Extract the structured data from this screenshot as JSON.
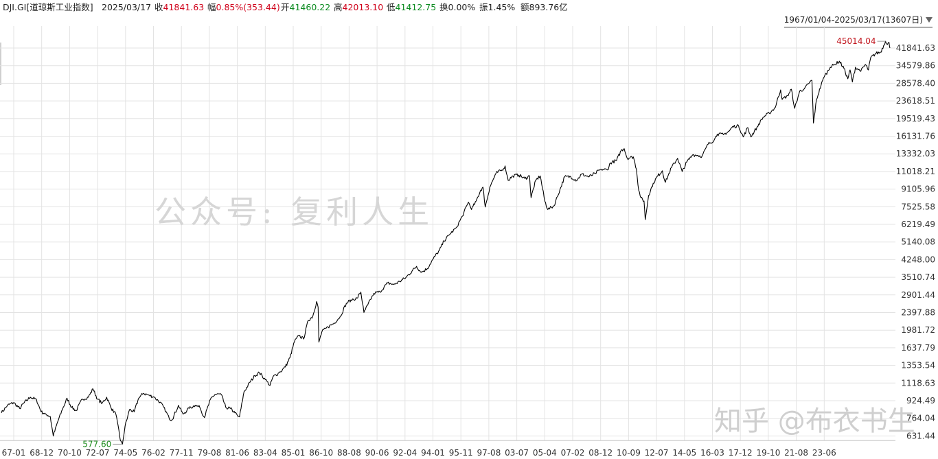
{
  "header": {
    "code": "DJI.GI[道琼斯工业指数]",
    "date": "2025/03/17",
    "close_label": "收",
    "close_value": "41841.63",
    "change_label": "幅",
    "change_value": "0.85%(353.44)",
    "open_label": "开",
    "open_value": "41460.22",
    "high_label": "高",
    "high_value": "42013.10",
    "low_label": "低",
    "low_value": "41412.75",
    "turnover_label": "换",
    "turnover_value": "0.00%",
    "amplitude_label": "振",
    "amplitude_value": "1.45%",
    "amount_label": "额",
    "amount_value": "893.76亿"
  },
  "range_selector": {
    "label": "1967/01/04-2025/03/17(13607日)"
  },
  "watermarks": {
    "center": "公众号: 复利人生",
    "bottom_right": "知乎 @布衣书生"
  },
  "colors": {
    "line": "#000000",
    "grid": "#e3e3e3",
    "high_mark": "#c0141c",
    "low_mark": "#1a8a1a"
  },
  "chart_data": {
    "type": "line",
    "scale": "log",
    "grid": true,
    "y_ticks": [
      "41841.63",
      "34579.86",
      "28578.40",
      "23618.51",
      "19519.43",
      "16131.76",
      "13332.03",
      "11018.21",
      "9105.96",
      "7525.58",
      "6219.49",
      "5140.08",
      "4248.00",
      "3510.74",
      "2901.44",
      "2397.88",
      "1981.72",
      "1637.79",
      "1353.54",
      "1118.63",
      "924.49",
      "764.04",
      "631.44"
    ],
    "x_ticks": [
      "67-01",
      "68-12",
      "70-10",
      "72-07",
      "74-05",
      "76-02",
      "77-11",
      "79-08",
      "81-06",
      "83-04",
      "85-01",
      "86-10",
      "88-08",
      "90-06",
      "92-04",
      "94-01",
      "95-11",
      "97-08",
      "03-07",
      "05-04",
      "07-02",
      "08-12",
      "10-09",
      "12-07",
      "14-05",
      "16-03",
      "17-12",
      "19-10",
      "21-08",
      "23-06"
    ],
    "annotations": {
      "max_label": "45014.04",
      "max_value": 45014.04,
      "min_label": "577.60",
      "min_value": 577.6
    },
    "series": [
      {
        "values": [
          [
            1967.0,
            810
          ],
          [
            1967.4,
            880
          ],
          [
            1967.8,
            905
          ],
          [
            1968.2,
            850
          ],
          [
            1968.5,
            905
          ],
          [
            1968.9,
            960
          ],
          [
            1969.3,
            935
          ],
          [
            1969.6,
            820
          ],
          [
            1969.9,
            800
          ],
          [
            1970.2,
            780
          ],
          [
            1970.4,
            631
          ],
          [
            1970.7,
            740
          ],
          [
            1971.0,
            840
          ],
          [
            1971.3,
            950
          ],
          [
            1971.6,
            860
          ],
          [
            1971.9,
            830
          ],
          [
            1972.3,
            940
          ],
          [
            1972.7,
            960
          ],
          [
            1973.0,
            1050
          ],
          [
            1973.3,
            940
          ],
          [
            1973.6,
            900
          ],
          [
            1973.9,
            960
          ],
          [
            1974.2,
            850
          ],
          [
            1974.5,
            800
          ],
          [
            1974.75,
            630
          ],
          [
            1974.8,
            600
          ],
          [
            1974.93,
            577.6
          ],
          [
            1975.1,
            700
          ],
          [
            1975.4,
            840
          ],
          [
            1975.7,
            820
          ],
          [
            1976.0,
            950
          ],
          [
            1976.3,
            1000
          ],
          [
            1976.7,
            980
          ],
          [
            1977.0,
            960
          ],
          [
            1977.4,
            910
          ],
          [
            1977.8,
            820
          ],
          [
            1978.0,
            760
          ],
          [
            1978.2,
            755
          ],
          [
            1978.6,
            880
          ],
          [
            1978.9,
            800
          ],
          [
            1979.3,
            850
          ],
          [
            1979.7,
            880
          ],
          [
            1980.0,
            860
          ],
          [
            1980.3,
            770
          ],
          [
            1980.7,
            940
          ],
          [
            1981.0,
            990
          ],
          [
            1981.4,
            990
          ],
          [
            1981.7,
            860
          ],
          [
            1982.0,
            850
          ],
          [
            1982.3,
            810
          ],
          [
            1982.5,
            780
          ],
          [
            1982.6,
            776
          ],
          [
            1982.7,
            850
          ],
          [
            1982.9,
            1020
          ],
          [
            1983.3,
            1130
          ],
          [
            1983.6,
            1210
          ],
          [
            1983.9,
            1250
          ],
          [
            1984.3,
            1160
          ],
          [
            1984.6,
            1090
          ],
          [
            1984.8,
            1200
          ],
          [
            1985.2,
            1250
          ],
          [
            1985.6,
            1330
          ],
          [
            1985.9,
            1470
          ],
          [
            1986.2,
            1750
          ],
          [
            1986.5,
            1870
          ],
          [
            1986.8,
            1800
          ],
          [
            1987.1,
            2200
          ],
          [
            1987.4,
            2300
          ],
          [
            1987.65,
            2700
          ],
          [
            1987.75,
            2540
          ],
          [
            1987.8,
            1740
          ],
          [
            1988.0,
            1950
          ],
          [
            1988.4,
            2050
          ],
          [
            1988.8,
            2140
          ],
          [
            1989.2,
            2300
          ],
          [
            1989.6,
            2650
          ],
          [
            1989.9,
            2750
          ],
          [
            1990.3,
            2800
          ],
          [
            1990.55,
            2990
          ],
          [
            1990.75,
            2400
          ],
          [
            1991.0,
            2600
          ],
          [
            1991.4,
            2950
          ],
          [
            1991.8,
            3000
          ],
          [
            1992.3,
            3300
          ],
          [
            1992.7,
            3250
          ],
          [
            1993.1,
            3350
          ],
          [
            1993.5,
            3500
          ],
          [
            1993.9,
            3750
          ],
          [
            1994.2,
            3950
          ],
          [
            1994.5,
            3700
          ],
          [
            1994.9,
            3850
          ],
          [
            1995.3,
            4300
          ],
          [
            1995.7,
            4700
          ],
          [
            1996.0,
            5200
          ],
          [
            1996.4,
            5600
          ],
          [
            1996.8,
            6000
          ],
          [
            1997.2,
            6800
          ],
          [
            1997.6,
            7900
          ],
          [
            1997.8,
            7300
          ],
          [
            1998.1,
            8000
          ],
          [
            1998.4,
            9000
          ],
          [
            1998.55,
            9300
          ],
          [
            1998.7,
            7500
          ],
          [
            1999.0,
            9300
          ],
          [
            1999.4,
            10800
          ],
          [
            1999.8,
            11200
          ],
          [
            2000.0,
            11700
          ],
          [
            2000.2,
            10000
          ],
          [
            2000.5,
            10500
          ],
          [
            2000.9,
            10600
          ],
          [
            2001.3,
            10200
          ],
          [
            2001.6,
            10500
          ],
          [
            2001.7,
            8300
          ],
          [
            2002.0,
            10000
          ],
          [
            2002.3,
            10500
          ],
          [
            2002.6,
            8000
          ],
          [
            2002.8,
            7300
          ],
          [
            2003.2,
            7600
          ],
          [
            2003.6,
            9100
          ],
          [
            2003.9,
            10400
          ],
          [
            2004.3,
            10400
          ],
          [
            2004.7,
            10000
          ],
          [
            2005.0,
            10700
          ],
          [
            2005.5,
            10400
          ],
          [
            2005.9,
            10800
          ],
          [
            2006.3,
            11300
          ],
          [
            2006.7,
            11200
          ],
          [
            2006.9,
            12100
          ],
          [
            2007.3,
            12400
          ],
          [
            2007.6,
            13800
          ],
          [
            2007.8,
            14100
          ],
          [
            2008.0,
            12700
          ],
          [
            2008.4,
            12900
          ],
          [
            2008.6,
            11300
          ],
          [
            2008.75,
            9000
          ],
          [
            2008.9,
            8300
          ],
          [
            2009.1,
            8000
          ],
          [
            2009.18,
            6547
          ],
          [
            2009.4,
            8500
          ],
          [
            2009.7,
            9700
          ],
          [
            2010.0,
            10500
          ],
          [
            2010.3,
            11100
          ],
          [
            2010.5,
            9800
          ],
          [
            2010.9,
            11500
          ],
          [
            2011.3,
            12700
          ],
          [
            2011.6,
            11000
          ],
          [
            2011.9,
            12200
          ],
          [
            2012.3,
            13200
          ],
          [
            2012.6,
            13100
          ],
          [
            2012.9,
            13000
          ],
          [
            2013.3,
            14800
          ],
          [
            2013.7,
            15500
          ],
          [
            2013.9,
            16500
          ],
          [
            2014.3,
            16400
          ],
          [
            2014.7,
            17100
          ],
          [
            2014.9,
            17900
          ],
          [
            2015.3,
            18000
          ],
          [
            2015.6,
            16000
          ],
          [
            2015.9,
            17700
          ],
          [
            2016.1,
            16000
          ],
          [
            2016.5,
            17800
          ],
          [
            2016.9,
            19800
          ],
          [
            2017.3,
            20700
          ],
          [
            2017.7,
            22000
          ],
          [
            2017.9,
            24700
          ],
          [
            2018.05,
            26600
          ],
          [
            2018.15,
            24000
          ],
          [
            2018.5,
            25000
          ],
          [
            2018.75,
            26800
          ],
          [
            2018.97,
            21800
          ],
          [
            2019.3,
            26300
          ],
          [
            2019.6,
            26900
          ],
          [
            2019.9,
            28500
          ],
          [
            2020.1,
            29500
          ],
          [
            2020.2,
            18600
          ],
          [
            2020.4,
            24000
          ],
          [
            2020.7,
            28000
          ],
          [
            2020.9,
            30600
          ],
          [
            2021.3,
            34000
          ],
          [
            2021.6,
            35000
          ],
          [
            2021.9,
            36300
          ],
          [
            2022.2,
            33500
          ],
          [
            2022.45,
            30000
          ],
          [
            2022.6,
            33000
          ],
          [
            2022.75,
            29000
          ],
          [
            2022.95,
            34000
          ],
          [
            2023.3,
            32500
          ],
          [
            2023.6,
            35000
          ],
          [
            2023.8,
            33000
          ],
          [
            2023.95,
            37700
          ],
          [
            2024.3,
            39500
          ],
          [
            2024.6,
            40000
          ],
          [
            2024.8,
            43000
          ],
          [
            2024.92,
            45014
          ],
          [
            2025.05,
            43500
          ],
          [
            2025.15,
            44500
          ],
          [
            2025.21,
            41841
          ]
        ]
      }
    ]
  }
}
